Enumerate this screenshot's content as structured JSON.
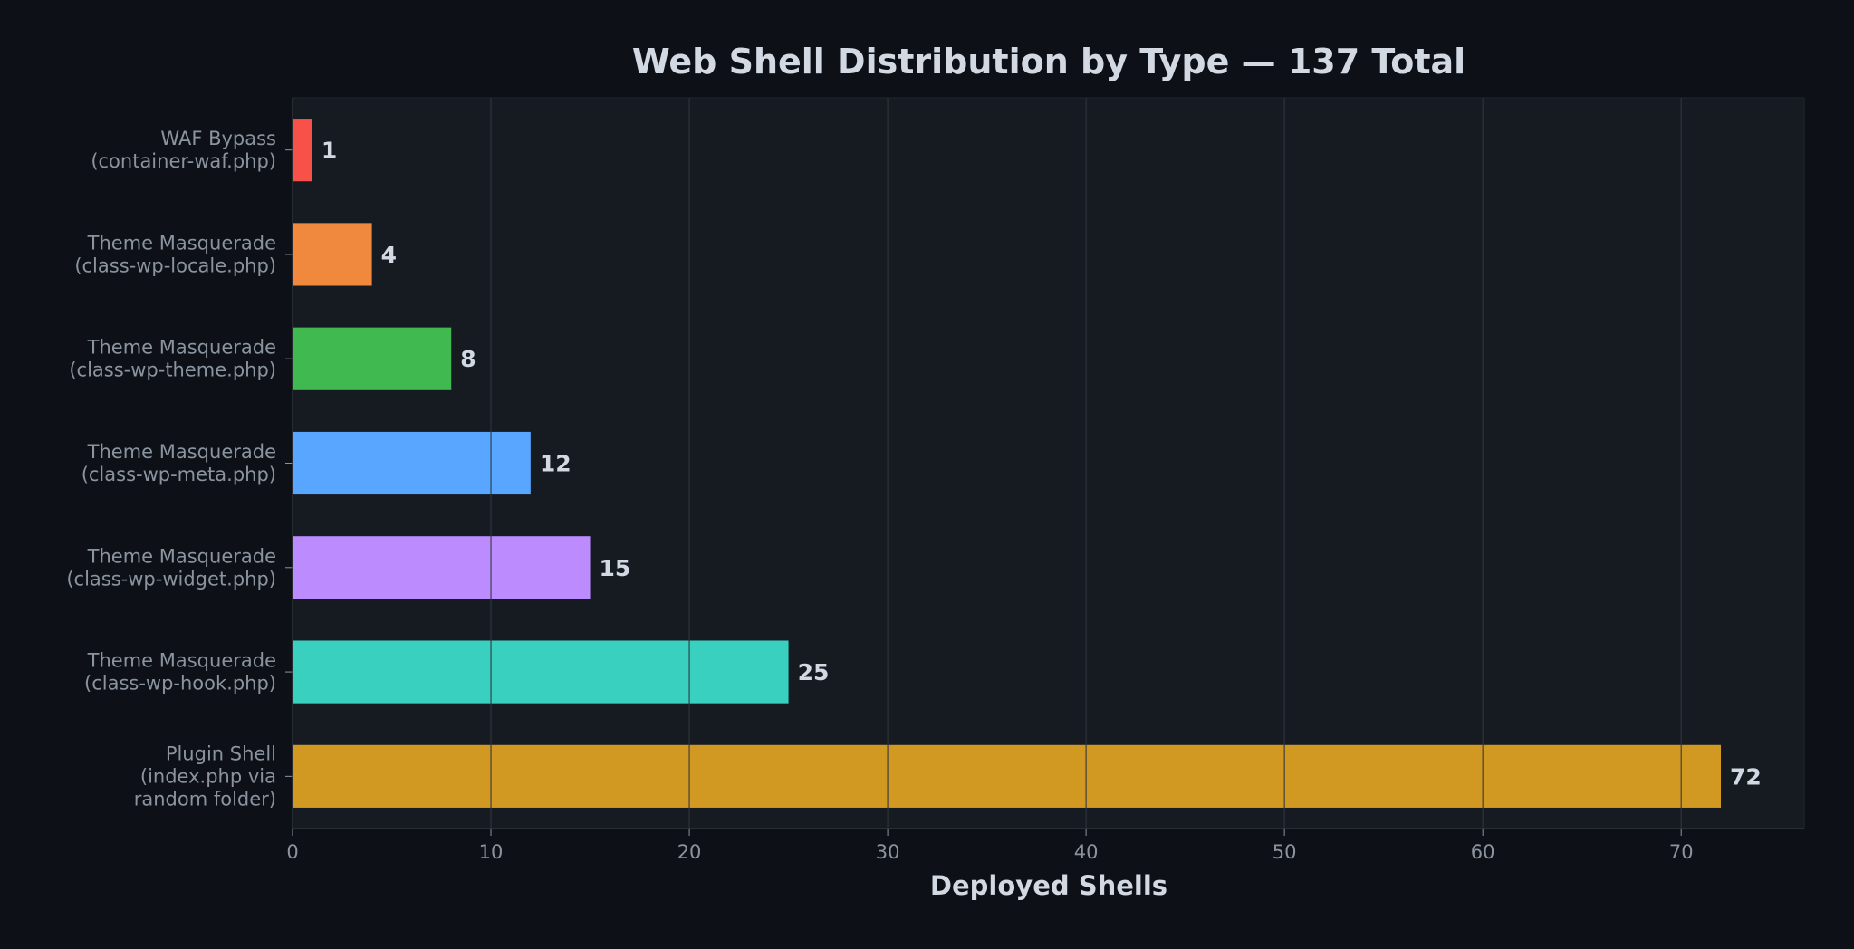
{
  "chart_data": {
    "type": "bar",
    "orientation": "horizontal",
    "title": "Web Shell Distribution by Type — 137 Total",
    "xlabel": "Deployed Shells",
    "ylabel": "",
    "xlim": [
      0,
      76.2
    ],
    "xticks": [
      0,
      10,
      20,
      30,
      40,
      50,
      60,
      70
    ],
    "grid": "x",
    "categories": [
      [
        "WAF Bypass",
        "(container-waf.php)"
      ],
      [
        "Theme Masquerade",
        "(class-wp-locale.php)"
      ],
      [
        "Theme Masquerade",
        "(class-wp-theme.php)"
      ],
      [
        "Theme Masquerade",
        "(class-wp-meta.php)"
      ],
      [
        "Theme Masquerade",
        "(class-wp-widget.php)"
      ],
      [
        "Theme Masquerade",
        "(class-wp-hook.php)"
      ],
      [
        "Plugin Shell",
        "(index.php via",
        "random folder)"
      ]
    ],
    "values": [
      1,
      4,
      8,
      12,
      15,
      25,
      72
    ],
    "colors": [
      "#f85149",
      "#f0883e",
      "#3fb950",
      "#58a6ff",
      "#bc8cff",
      "#39d0c0",
      "#d29922"
    ],
    "background": "#0d1117",
    "plot_background": "#161b22"
  }
}
